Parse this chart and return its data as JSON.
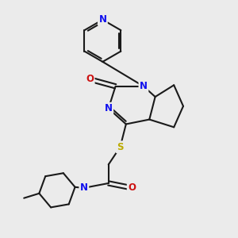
{
  "background_color": "#ebebeb",
  "bond_color": "#1a1a1a",
  "bond_width": 1.5,
  "atom_colors": {
    "N": "#1010ee",
    "O": "#cc1010",
    "S": "#bbaa00",
    "C": "#1a1a1a"
  },
  "font_size_atom": 8.5
}
